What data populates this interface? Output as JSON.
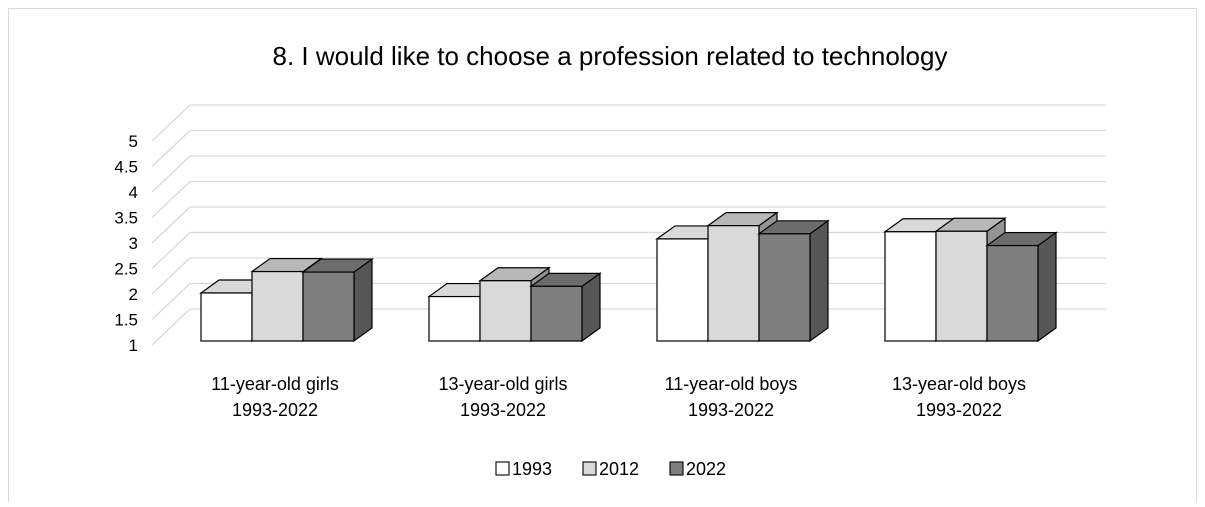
{
  "chart_data": {
    "type": "bar",
    "title": "8. I would like to choose a profession related to technology",
    "categories": [
      [
        "11-year-old girls",
        "1993-2022"
      ],
      [
        "13-year-old girls",
        "1993-2022"
      ],
      [
        "11-year-old boys",
        "1993-2022"
      ],
      [
        "13-year-old boys",
        "1993-2022"
      ]
    ],
    "series": [
      {
        "name": "1993",
        "values": [
          2.02,
          1.95,
          3.08,
          3.22
        ],
        "color": "#ffffff"
      },
      {
        "name": "2012",
        "values": [
          2.44,
          2.26,
          3.34,
          3.23
        ],
        "color": "#d9d9d9"
      },
      {
        "name": "2022",
        "values": [
          2.43,
          2.15,
          3.18,
          2.95
        ],
        "color": "#7f7f7f"
      }
    ],
    "y_ticks": [
      "1",
      "1.5",
      "2",
      "2.5",
      "3",
      "3.5",
      "4",
      "4.5",
      "5"
    ],
    "ylim": [
      1,
      5
    ],
    "xlabel": "",
    "ylabel": "",
    "grid": true,
    "legend_position": "bottom",
    "style": "3d-clustered-column"
  }
}
